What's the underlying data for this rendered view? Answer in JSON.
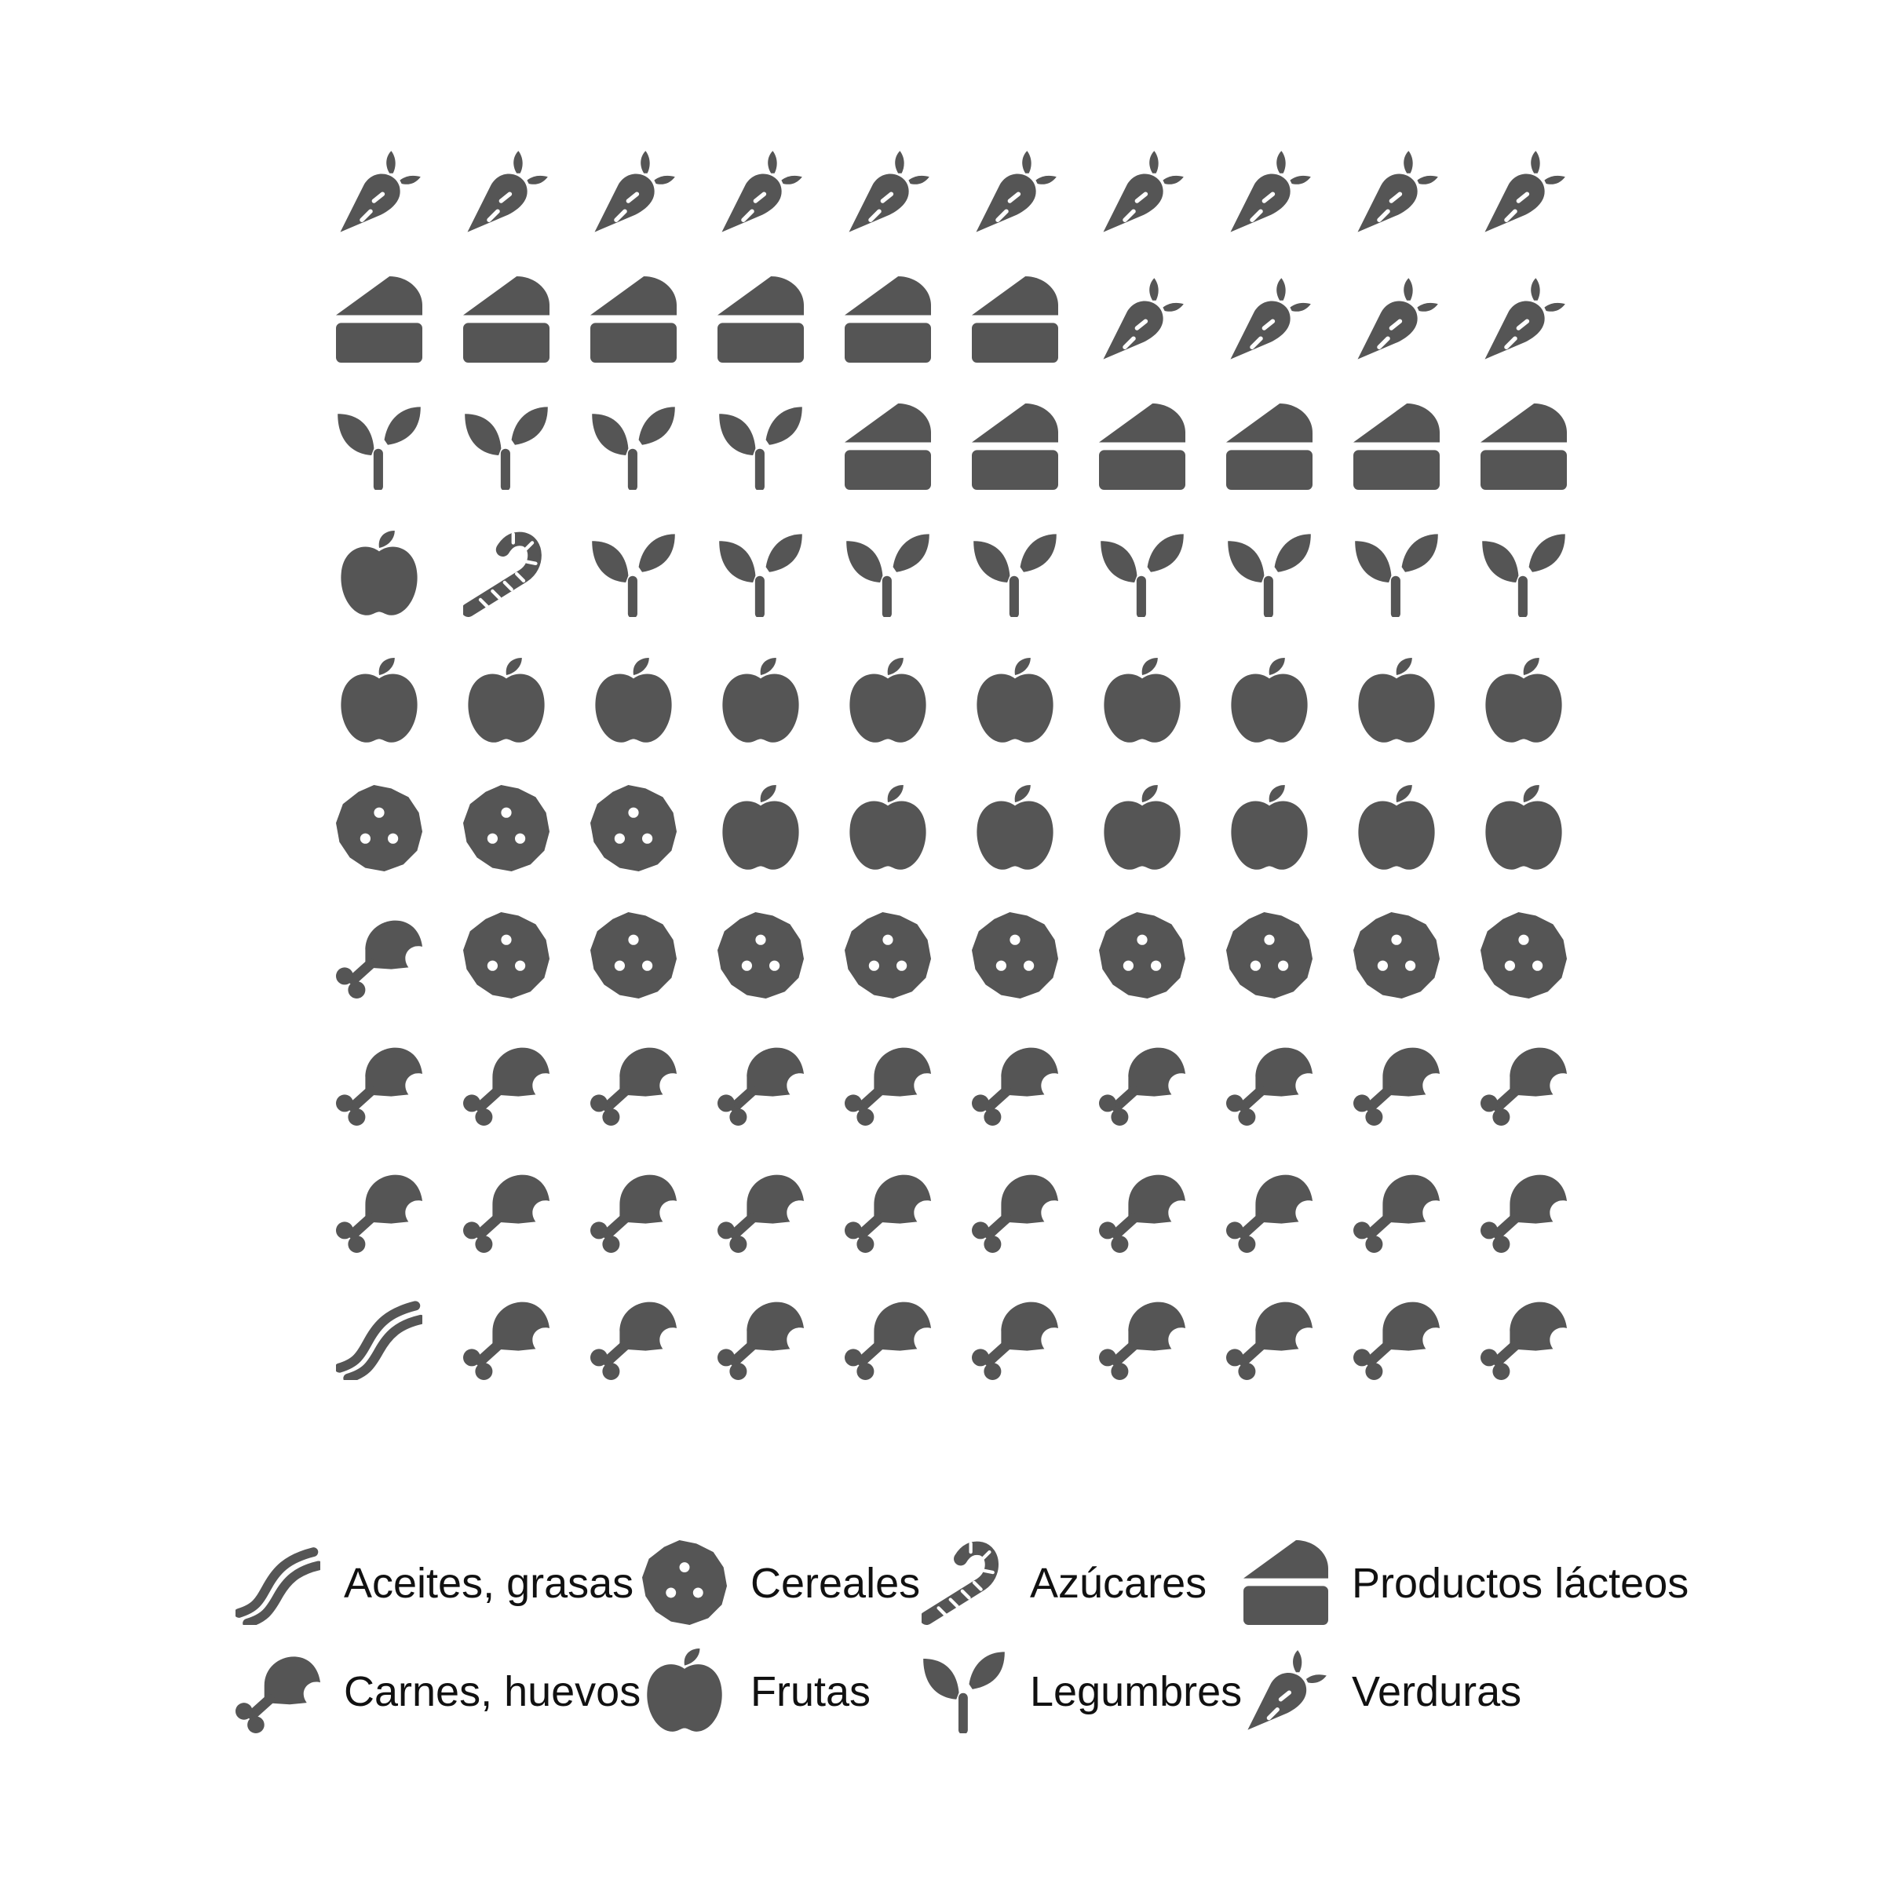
{
  "chart_data": {
    "type": "waffle",
    "title": "",
    "grid": {
      "rows": 10,
      "cols": 10
    },
    "rows": [
      [
        "verduras",
        "verduras",
        "verduras",
        "verduras",
        "verduras",
        "verduras",
        "verduras",
        "verduras",
        "verduras",
        "verduras"
      ],
      [
        "lacteos",
        "lacteos",
        "lacteos",
        "lacteos",
        "lacteos",
        "lacteos",
        "verduras",
        "verduras",
        "verduras",
        "verduras"
      ],
      [
        "legumbres",
        "legumbres",
        "legumbres",
        "legumbres",
        "lacteos",
        "lacteos",
        "lacteos",
        "lacteos",
        "lacteos",
        "lacteos"
      ],
      [
        "frutas",
        "azucares",
        "legumbres",
        "legumbres",
        "legumbres",
        "legumbres",
        "legumbres",
        "legumbres",
        "legumbres",
        "legumbres"
      ],
      [
        "frutas",
        "frutas",
        "frutas",
        "frutas",
        "frutas",
        "frutas",
        "frutas",
        "frutas",
        "frutas",
        "frutas"
      ],
      [
        "cereales",
        "cereales",
        "cereales",
        "frutas",
        "frutas",
        "frutas",
        "frutas",
        "frutas",
        "frutas",
        "frutas"
      ],
      [
        "carnes",
        "cereales",
        "cereales",
        "cereales",
        "cereales",
        "cereales",
        "cereales",
        "cereales",
        "cereales",
        "cereales"
      ],
      [
        "carnes",
        "carnes",
        "carnes",
        "carnes",
        "carnes",
        "carnes",
        "carnes",
        "carnes",
        "carnes",
        "carnes"
      ],
      [
        "carnes",
        "carnes",
        "carnes",
        "carnes",
        "carnes",
        "carnes",
        "carnes",
        "carnes",
        "carnes",
        "carnes"
      ],
      [
        "aceites",
        "carnes",
        "carnes",
        "carnes",
        "carnes",
        "carnes",
        "carnes",
        "carnes",
        "carnes",
        "carnes"
      ]
    ],
    "counts": {
      "aceites": 1,
      "cereales": 12,
      "azucares": 1,
      "lacteos": 12,
      "carnes": 30,
      "frutas": 18,
      "legumbres": 12,
      "verduras": 14
    },
    "legend": [
      {
        "key": "aceites",
        "label": "Aceites, grasas",
        "icon": "bacon-icon"
      },
      {
        "key": "cereales",
        "label": "Cereales",
        "icon": "cookie-icon"
      },
      {
        "key": "azucares",
        "label": "Azúcares",
        "icon": "candy-cane-icon"
      },
      {
        "key": "lacteos",
        "label": "Productos lácteos",
        "icon": "cheese-icon"
      },
      {
        "key": "carnes",
        "label": "Carnes, huevos",
        "icon": "drumstick-icon"
      },
      {
        "key": "frutas",
        "label": "Frutas",
        "icon": "apple-icon"
      },
      {
        "key": "legumbres",
        "label": "Legumbres",
        "icon": "seedling-icon"
      },
      {
        "key": "verduras",
        "label": "Verduras",
        "icon": "carrot-icon"
      }
    ],
    "icon_color": "#555555",
    "background": "#ffffff"
  }
}
